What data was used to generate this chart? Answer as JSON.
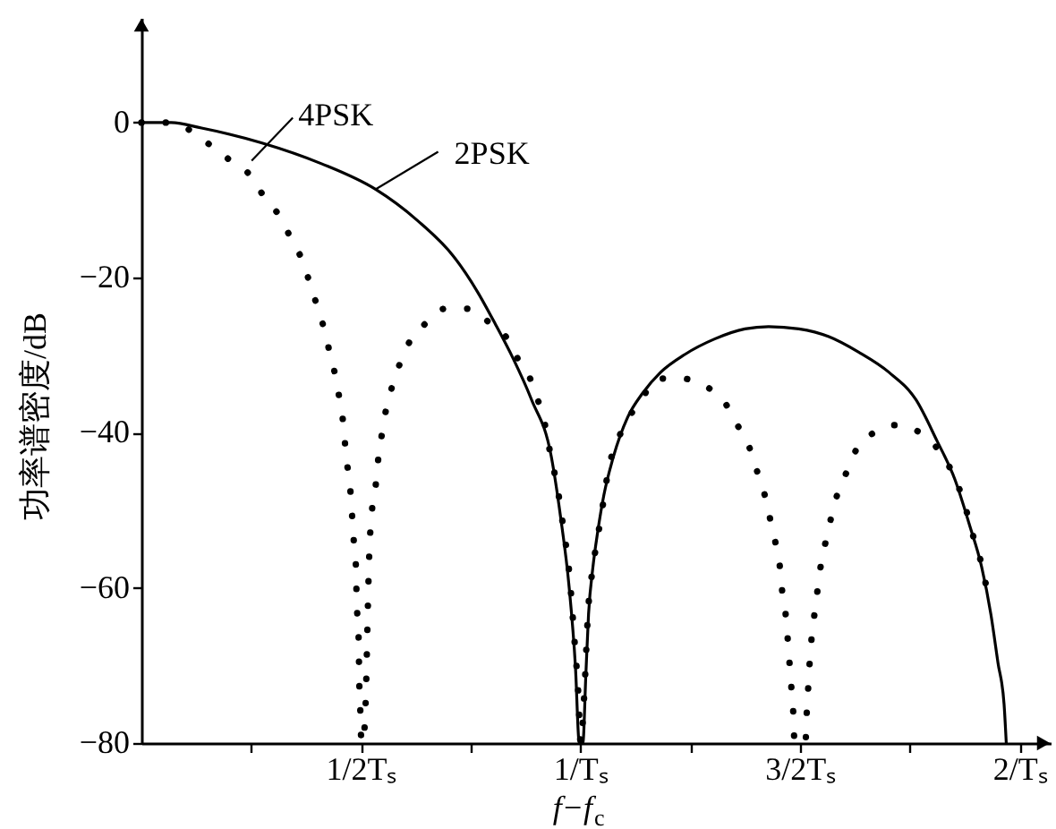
{
  "chart_data": {
    "type": "line",
    "xlabel": "f−f$_{c}$",
    "ylabel": "功率谱密度/dB",
    "xlim": [
      0,
      2.07
    ],
    "ylim": [
      -80,
      13.5
    ],
    "xticks": [
      {
        "value": 0.25,
        "label": null
      },
      {
        "value": 0.5,
        "label": "1/2Tₛ"
      },
      {
        "value": 0.75,
        "label": null
      },
      {
        "value": 1,
        "label": "1/Tₛ"
      },
      {
        "value": 1.25,
        "label": null
      },
      {
        "value": 1.5,
        "label": "3/2Tₛ"
      },
      {
        "value": 1.75,
        "label": null
      },
      {
        "value": 2,
        "label": "2/Tₛ"
      }
    ],
    "yticks": [
      -80,
      -60,
      -40,
      -20,
      0
    ],
    "series": [
      {
        "name": "2PSK",
        "color": "#000000",
        "line_style": "solid",
        "x": [
          0,
          0.068,
          0.137,
          0.273,
          0.41,
          0.533,
          0.628,
          0.71,
          0.765,
          0.806,
          0.847,
          0.888,
          0.933,
          0.954,
          0.974,
          0.988,
          0.997,
          1.005,
          1.012,
          1.018,
          1.028,
          1.039,
          1.053,
          1.073,
          1.107,
          1.141,
          1.182,
          1.237,
          1.305,
          1.374,
          1.428,
          1.497,
          1.565,
          1.633,
          1.702,
          1.763,
          1.811,
          1.852,
          1.886,
          1.913,
          1.934,
          1.95,
          1.964,
          1.969
        ],
        "values": [
          0,
          0,
          -0.7,
          -2.6,
          -5.3,
          -8.6,
          -12.6,
          -17.2,
          -21.8,
          -26,
          -30.5,
          -35.7,
          -43,
          -50.7,
          -60,
          -70,
          -80,
          -80,
          -71,
          -63.4,
          -57.3,
          -52.7,
          -48,
          -43.4,
          -38,
          -34.9,
          -32.2,
          -29.9,
          -27.9,
          -26.6,
          -26.3,
          -26.6,
          -27.6,
          -29.6,
          -32.2,
          -35.7,
          -41,
          -46,
          -52,
          -57.3,
          -63.4,
          -69.6,
          -75,
          -80
        ]
      },
      {
        "name": "4PSK",
        "color": "#000000",
        "line_style": "dotted",
        "x": [
          0,
          0.059,
          0.111,
          0.159,
          0.205,
          0.251,
          0.284,
          0.314,
          0.341,
          0.368,
          0.385,
          0.402,
          0.418,
          0.43,
          0.443,
          0.452,
          0.46,
          0.466,
          0.473,
          0.478,
          0.481,
          0.485,
          0.489,
          0.49,
          0.494,
          0.495,
          0.496,
          0.498,
          0.5,
          0.504,
          0.509,
          0.511,
          0.515,
          0.518,
          0.525,
          0.533,
          0.538,
          0.548,
          0.557,
          0.571,
          0.589,
          0.613,
          0.645,
          0.691,
          0.747,
          0.796,
          0.835,
          0.862,
          0.885,
          0.904,
          0.919,
          0.932,
          0.947,
          0.96,
          0.974,
          0.985,
          0.995,
          1.0,
          1.008,
          1.017,
          1.029,
          1.046,
          1.066,
          1.084,
          1.11,
          1.135,
          1.176,
          1.23,
          1.285,
          1.327,
          1.357,
          1.385,
          1.402,
          1.419,
          1.431,
          1.443,
          1.453,
          1.458,
          1.466,
          1.472,
          1.476,
          1.48,
          1.484,
          1.487,
          1.512,
          1.514,
          1.517,
          1.521,
          1.525,
          1.531,
          1.54,
          1.547,
          1.558,
          1.57,
          1.584,
          1.606,
          1.629,
          1.667,
          1.721,
          1.773,
          1.812,
          1.845,
          1.867,
          1.883,
          1.897,
          1.913,
          1.924
        ],
        "values": [
          0,
          0,
          -1,
          -3,
          -5,
          -7,
          -10,
          -12,
          -15,
          -18,
          -21,
          -24,
          -27,
          -30,
          -33,
          -36,
          -39,
          -43,
          -46,
          -49,
          -52,
          -55,
          -58,
          -62,
          -65,
          -68,
          -72,
          -75,
          -79,
          -80,
          -77,
          -74,
          -64,
          -57,
          -50,
          -47,
          -44,
          -40,
          -37,
          -34,
          -31,
          -28,
          -26,
          -24,
          -24,
          -26,
          -28,
          -31,
          -33,
          -36,
          -39,
          -43,
          -47,
          -52,
          -58,
          -66,
          -74,
          -80,
          -74,
          -63,
          -57,
          -51,
          -44,
          -41,
          -38,
          -36,
          -33,
          -33,
          -34,
          -36,
          -39,
          -42,
          -45,
          -48,
          -51,
          -54,
          -57,
          -60,
          -63,
          -67,
          -70,
          -73,
          -76,
          -80,
          -80,
          -77,
          -74,
          -70,
          -67,
          -64,
          -60,
          -57,
          -54,
          -51,
          -48,
          -45,
          -42,
          -40,
          -39,
          -40,
          -42,
          -45,
          -48,
          -51,
          -54,
          -57,
          -60
        ]
      }
    ]
  }
}
